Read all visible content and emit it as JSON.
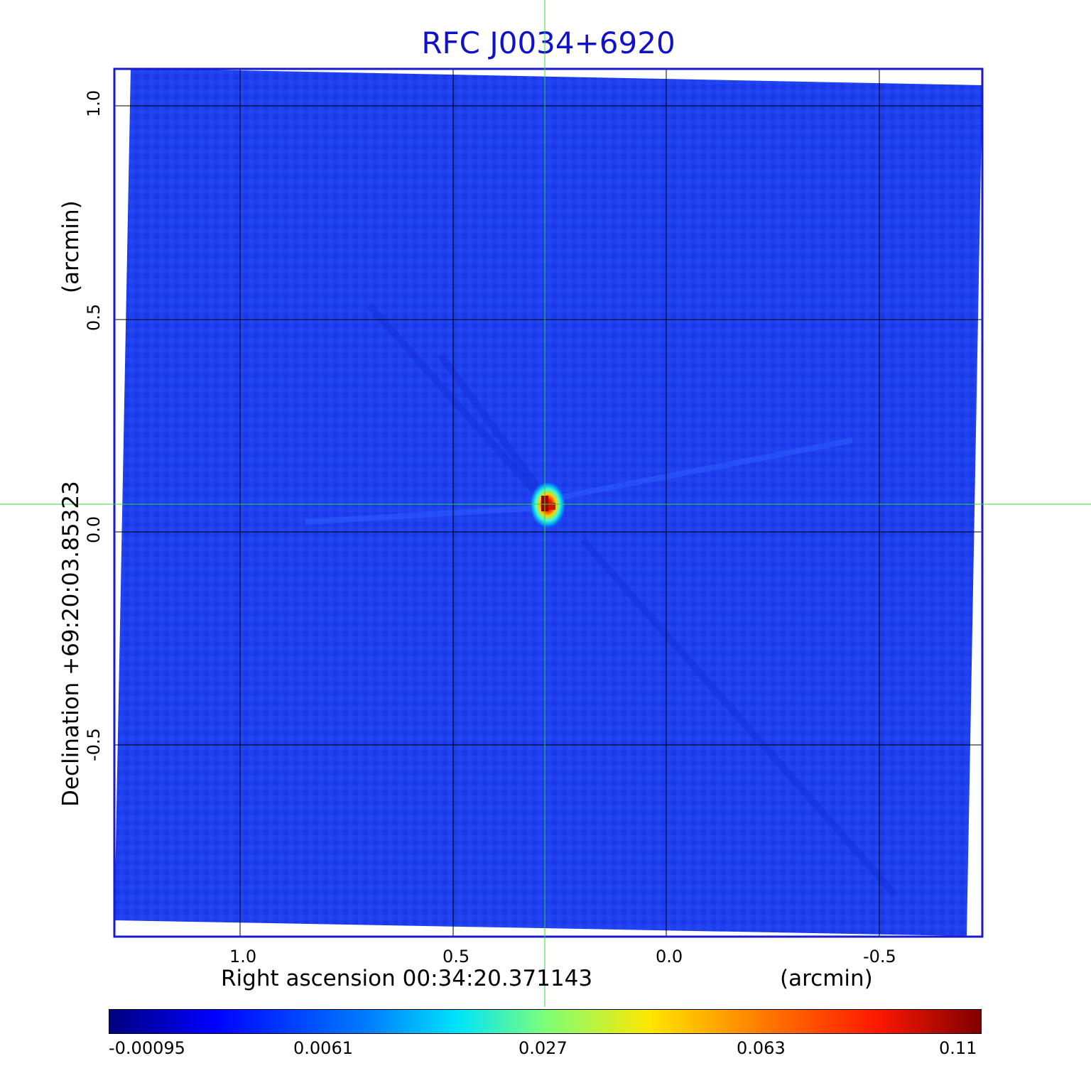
{
  "title": "RFC J0034+6920",
  "x_axis": {
    "label": "Right ascension  00:34:20.371143",
    "unit": "(arcmin)",
    "ticks": [
      "1.0",
      "0.5",
      "0.0",
      "-0.5"
    ]
  },
  "y_axis": {
    "label": "Declination  +69:20:03.85323",
    "unit": "(arcmin)",
    "ticks": [
      "1.0",
      "0.5",
      "0.0",
      "-0.5"
    ]
  },
  "colorbar": {
    "labels": [
      "-0.00095",
      "0.0061",
      "0.027",
      "0.063",
      "0.11"
    ],
    "colors": [
      "#00007f",
      "#0000ff",
      "#0080ff",
      "#00e4f8",
      "#7cff79",
      "#ffe600",
      "#ff7a00",
      "#ff1800",
      "#7f0000"
    ]
  },
  "colors": {
    "background_field": "#1f3ff0",
    "frame": "#1a1acc",
    "crosshair": "#33dd33",
    "grid": "#000000"
  }
}
